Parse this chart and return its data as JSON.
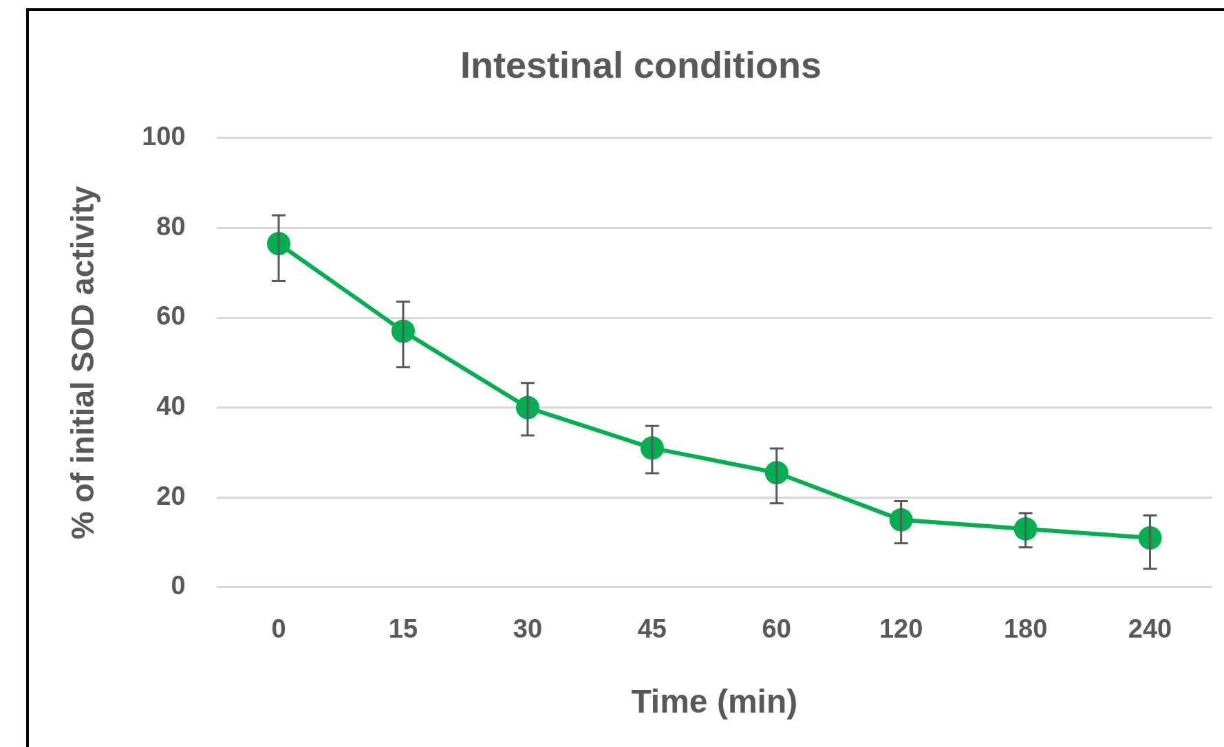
{
  "chart_data": {
    "type": "line",
    "title": "Intestinal conditions",
    "xlabel": "Time (min)",
    "ylabel": "% of initial SOD activity",
    "categories": [
      "0",
      "15",
      "30",
      "45",
      "60",
      "120",
      "180",
      "240"
    ],
    "series": [
      {
        "color": "#00b050",
        "values": [
          76.5,
          57,
          40,
          31,
          25.5,
          15,
          13,
          11
        ],
        "errors": [
          [
            68.2,
            82.8
          ],
          [
            49,
            63.6
          ],
          [
            33.8,
            45.5
          ],
          [
            25.4,
            35.9
          ],
          [
            18.7,
            30.9
          ],
          [
            9.8,
            19.2
          ],
          [
            8.9,
            16.5
          ],
          [
            4.1,
            16
          ]
        ]
      }
    ],
    "ylim": [
      0,
      100
    ],
    "yticks": [
      0,
      20,
      40,
      60,
      80,
      100
    ],
    "grid": "y",
    "legend": false,
    "marker": "circle",
    "line_style": "solid"
  }
}
